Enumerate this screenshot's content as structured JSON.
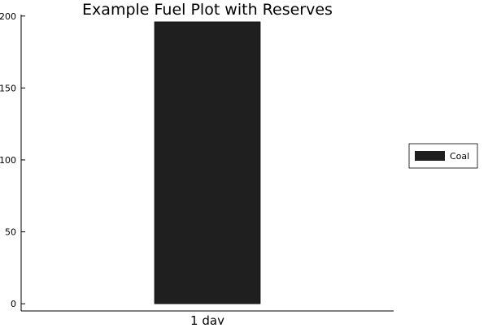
{
  "chart_data": {
    "type": "bar",
    "title": "Example Fuel Plot with Reserves",
    "xlabel": "",
    "ylabel": "",
    "categories": [
      "1 day"
    ],
    "series": [
      {
        "name": "Coal",
        "values": [
          196
        ],
        "color": "#1f1f1f"
      }
    ],
    "yticks": [
      0,
      50,
      100,
      150,
      200
    ],
    "ylim": [
      -5,
      201
    ],
    "grid": false,
    "legend": {
      "position": "right",
      "entries": [
        "Coal"
      ]
    }
  }
}
